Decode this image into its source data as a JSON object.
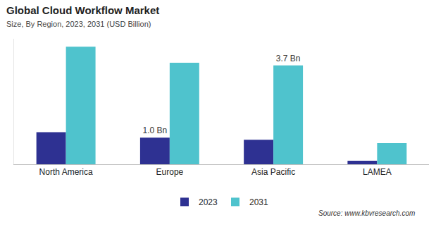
{
  "chart_data": {
    "type": "bar",
    "title": "Global Cloud Workflow Market",
    "subtitle": "Size, By Region, 2023, 2031 (USD Billion)",
    "categories": [
      "North America",
      "Europe",
      "Asia Pacific",
      "LAMEA"
    ],
    "series": [
      {
        "name": "2023",
        "color": "#2e3192",
        "values": [
          1.2,
          1.0,
          0.92,
          0.13
        ],
        "value_labels": [
          null,
          "1.0 Bn",
          null,
          null
        ]
      },
      {
        "name": "2031",
        "color": "#4fc3cd",
        "values": [
          4.4,
          3.8,
          3.7,
          0.79
        ],
        "value_labels": [
          null,
          null,
          "3.7 Bn",
          null
        ]
      }
    ],
    "ylim": [
      0,
      4.7
    ],
    "tick_labels": "x",
    "grid": false,
    "legend": "bottom",
    "source": "Source: www.kbvresearch.com"
  }
}
